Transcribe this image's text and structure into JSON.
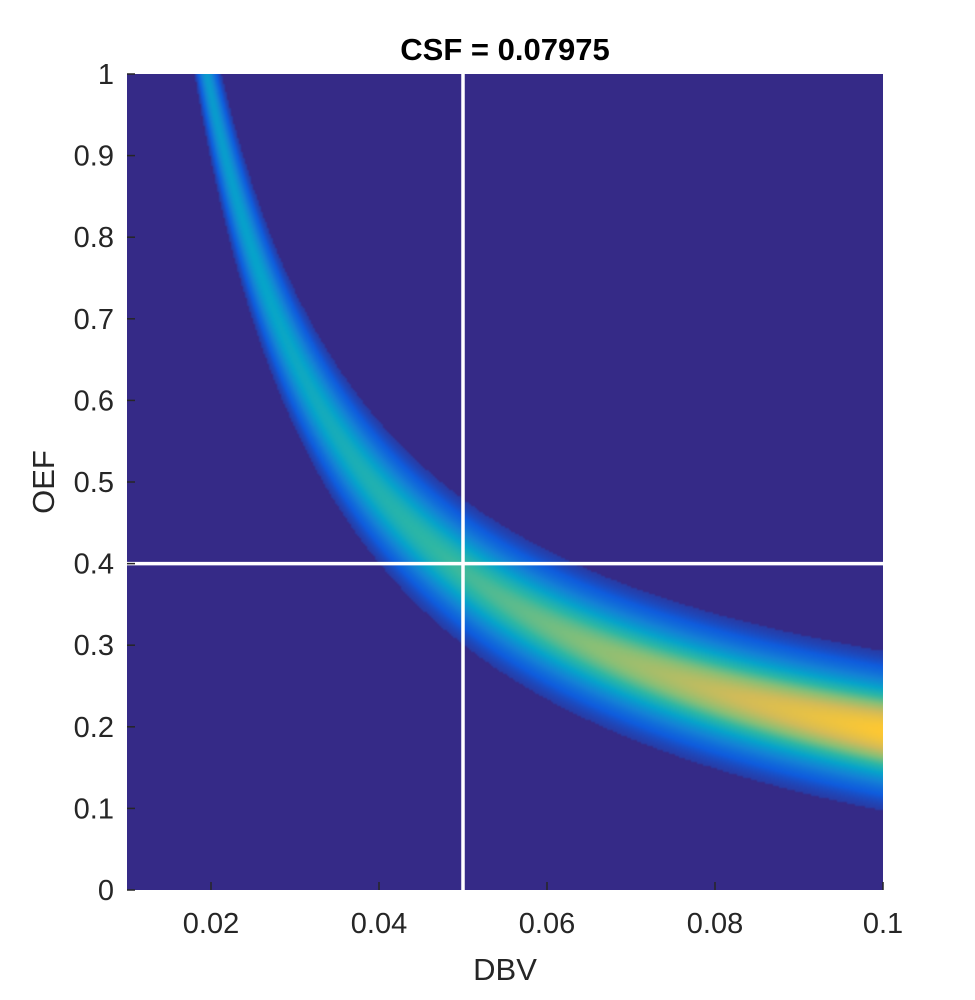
{
  "chart_data": {
    "type": "heatmap",
    "title": "CSF = 0.07975",
    "xlabel": "DBV",
    "ylabel": "OEF",
    "xlim": [
      0.01,
      0.1
    ],
    "ylim": [
      0,
      1
    ],
    "x_ticks": [
      {
        "value": 0.02,
        "label": "0.02"
      },
      {
        "value": 0.04,
        "label": "0.04"
      },
      {
        "value": 0.06,
        "label": "0.06"
      },
      {
        "value": 0.08,
        "label": "0.08"
      },
      {
        "value": 0.1,
        "label": "0.1"
      }
    ],
    "y_ticks": [
      {
        "value": 0,
        "label": "0"
      },
      {
        "value": 0.1,
        "label": "0.1"
      },
      {
        "value": 0.2,
        "label": "0.2"
      },
      {
        "value": 0.3,
        "label": "0.3"
      },
      {
        "value": 0.4,
        "label": "0.4"
      },
      {
        "value": 0.5,
        "label": "0.5"
      },
      {
        "value": 0.6,
        "label": "0.6"
      },
      {
        "value": 0.7,
        "label": "0.7"
      },
      {
        "value": 0.8,
        "label": "0.8"
      },
      {
        "value": 0.9,
        "label": "0.9"
      },
      {
        "value": 1,
        "label": "1"
      }
    ],
    "ridge_curve": {
      "description": "high-likelihood band follows OEF * DBV ≈ constant",
      "product": 0.0195,
      "band_sigma_oef": 0.04
    },
    "reference_lines": {
      "x": 0.05,
      "y": 0.4,
      "color": "#ffffff"
    },
    "colormap": {
      "name": "parula",
      "background": "#352a87",
      "stops": [
        "#352a87",
        "#0f5cdd",
        "#1481d6",
        "#06a4ca",
        "#2eb7a4",
        "#87bf77",
        "#d1bb59",
        "#fec832"
      ]
    },
    "grid": false,
    "legend": "none"
  }
}
